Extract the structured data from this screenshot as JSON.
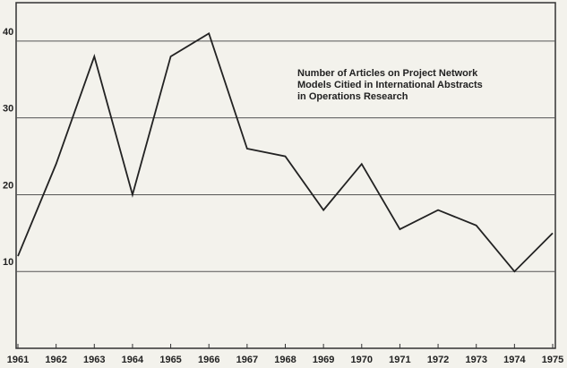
{
  "chart_data": {
    "type": "line",
    "title": [
      "Number of Articles on Project Network",
      "Models Citied in International Abstracts",
      "in Operations Research"
    ],
    "x": [
      1961,
      1962,
      1963,
      1964,
      1965,
      1966,
      1967,
      1968,
      1969,
      1970,
      1971,
      1972,
      1973,
      1974,
      1975
    ],
    "series": [
      {
        "color": "#222222",
        "values": [
          12,
          24,
          38,
          20,
          38,
          41,
          26,
          25,
          18,
          24,
          15.5,
          18,
          16,
          10,
          15
        ]
      }
    ],
    "xlim": [
      1961,
      1975
    ],
    "xticks": [
      1961,
      1962,
      1963,
      1964,
      1965,
      1966,
      1967,
      1968,
      1969,
      1970,
      1971,
      1972,
      1973,
      1974,
      1975
    ],
    "ylim": [
      0,
      45
    ],
    "yticks": [
      10,
      20,
      30,
      40
    ],
    "grid": true
  }
}
